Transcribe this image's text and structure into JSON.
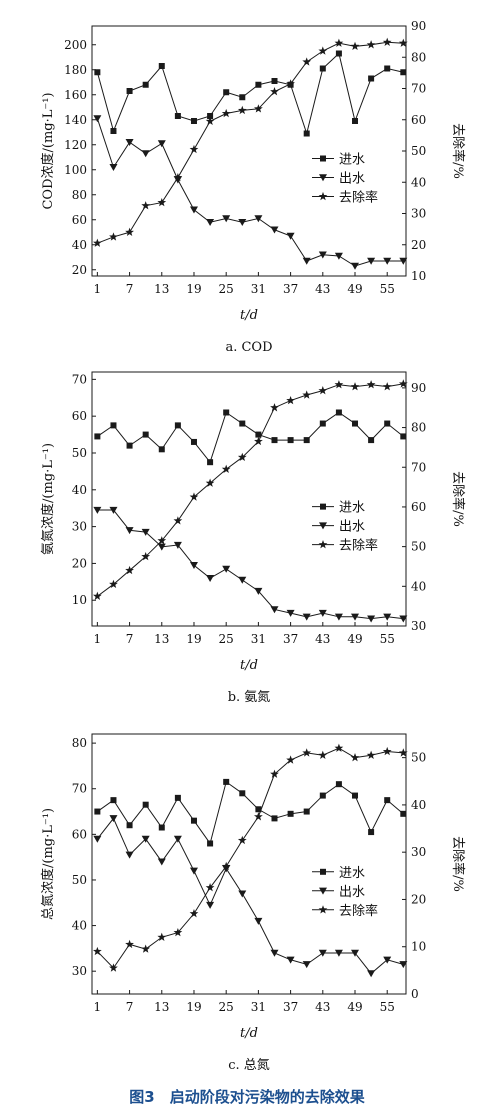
{
  "figure_caption": "图3　启动阶段对污染物的去除效果",
  "colors": {
    "line": "#1a1a1a",
    "caption": "#1c4f8f"
  },
  "chart_data": [
    {
      "type": "line",
      "subtitle": "a. COD",
      "xlabel": "t/d",
      "ylabel": "COD浓度/(mg·L⁻¹)",
      "y2label": "去除率/%",
      "xlim": [
        0,
        58.5
      ],
      "ylim": [
        15,
        215
      ],
      "y2lim": [
        10,
        90
      ],
      "xticks": [
        1,
        7,
        13,
        19,
        25,
        31,
        37,
        43,
        49,
        55
      ],
      "yticks": [
        20,
        40,
        60,
        80,
        100,
        120,
        140,
        160,
        180,
        200
      ],
      "y2ticks": [
        10,
        20,
        30,
        40,
        50,
        60,
        70,
        80,
        90
      ],
      "legend": {
        "position": "center-right",
        "entries": [
          "进水",
          "出水",
          "去除率"
        ]
      },
      "grid": false,
      "x": [
        1,
        4,
        7,
        10,
        13,
        16,
        19,
        22,
        25,
        28,
        31,
        34,
        37,
        40,
        43,
        46,
        49,
        52,
        55,
        58
      ],
      "series": [
        {
          "name": "进水",
          "axis": "left",
          "marker": "square",
          "values": [
            178,
            131,
            163,
            168,
            183,
            143,
            139,
            143,
            162,
            158,
            168,
            171,
            168,
            129,
            181,
            193,
            139,
            173,
            181,
            178
          ]
        },
        {
          "name": "出水",
          "axis": "left",
          "marker": "triangle-down",
          "values": [
            141,
            102,
            122,
            113,
            121,
            92,
            68,
            58,
            61,
            58,
            61,
            52,
            47,
            27,
            32,
            31,
            23,
            27,
            27,
            27
          ]
        },
        {
          "name": "去除率",
          "axis": "right",
          "marker": "star",
          "values": [
            20.5,
            22.5,
            24,
            32.5,
            33.5,
            41.5,
            50.5,
            59.5,
            62,
            63,
            63.5,
            69,
            71.5,
            78.5,
            82,
            84.5,
            83.5,
            84,
            84.8,
            84.5
          ]
        }
      ]
    },
    {
      "type": "line",
      "subtitle": "b. 氨氮",
      "xlabel": "t/d",
      "ylabel": "氨氮浓度/(mg·L⁻¹)",
      "y2label": "去除率/%",
      "xlim": [
        0,
        58.5
      ],
      "ylim": [
        3,
        72
      ],
      "y2lim": [
        30,
        94
      ],
      "xticks": [
        1,
        7,
        13,
        19,
        25,
        31,
        37,
        43,
        49,
        55
      ],
      "yticks": [
        10,
        20,
        30,
        40,
        50,
        60,
        70
      ],
      "y2ticks": [
        30,
        40,
        50,
        60,
        70,
        80,
        90
      ],
      "legend": {
        "position": "center-right",
        "entries": [
          "进水",
          "出水",
          "去除率"
        ]
      },
      "grid": false,
      "x": [
        1,
        4,
        7,
        10,
        13,
        16,
        19,
        22,
        25,
        28,
        31,
        34,
        37,
        40,
        43,
        46,
        49,
        52,
        55,
        58
      ],
      "series": [
        {
          "name": "进水",
          "axis": "left",
          "marker": "square",
          "values": [
            54.5,
            57.5,
            52,
            55,
            51,
            57.5,
            53,
            47.5,
            61,
            58,
            55,
            53.5,
            53.5,
            53.5,
            58,
            61,
            58,
            53.5,
            58,
            54.5
          ]
        },
        {
          "name": "出水",
          "axis": "left",
          "marker": "triangle-down",
          "values": [
            34.5,
            34.5,
            29,
            28.5,
            24.5,
            25,
            19.5,
            16,
            18.5,
            15.5,
            12.5,
            7.5,
            6.5,
            5.5,
            6.5,
            5.5,
            5.5,
            5,
            5.5,
            5
          ]
        },
        {
          "name": "去除率",
          "axis": "right",
          "marker": "star",
          "values": [
            37.5,
            40.5,
            44,
            47.5,
            51.5,
            56.5,
            62.5,
            66,
            69.5,
            72.5,
            76.5,
            85,
            86.8,
            88.2,
            89.3,
            90.8,
            90.3,
            90.8,
            90.3,
            91
          ]
        }
      ]
    },
    {
      "type": "line",
      "subtitle": "c. 总氮",
      "xlabel": "t/d",
      "ylabel": "总氮浓度/(mg·L⁻¹)",
      "y2label": "去除率/%",
      "xlim": [
        0,
        58.5
      ],
      "ylim": [
        25,
        82
      ],
      "y2lim": [
        0,
        55
      ],
      "xticks": [
        1,
        7,
        13,
        19,
        25,
        31,
        37,
        43,
        49,
        55
      ],
      "yticks": [
        30,
        40,
        50,
        60,
        70,
        80
      ],
      "y2ticks": [
        0,
        10,
        20,
        30,
        40,
        50
      ],
      "legend": {
        "position": "center-right",
        "entries": [
          "进水",
          "出水",
          "去除率"
        ]
      },
      "grid": false,
      "x": [
        1,
        4,
        7,
        10,
        13,
        16,
        19,
        22,
        25,
        28,
        31,
        34,
        37,
        40,
        43,
        46,
        49,
        52,
        55,
        58
      ],
      "series": [
        {
          "name": "进水",
          "axis": "left",
          "marker": "square",
          "values": [
            65,
            67.5,
            62,
            66.5,
            61.5,
            68,
            63,
            58,
            71.5,
            69,
            65.5,
            63.5,
            64.5,
            65,
            68.5,
            71,
            68.5,
            60.5,
            67.5,
            64.5
          ]
        },
        {
          "name": "出水",
          "axis": "left",
          "marker": "triangle-down",
          "values": [
            59,
            63.5,
            55.5,
            59,
            54,
            59,
            52,
            44.5,
            52.5,
            47,
            41,
            34,
            32.5,
            31.5,
            34,
            34,
            34,
            29.5,
            32.5,
            31.5
          ]
        },
        {
          "name": "去除率",
          "axis": "right",
          "marker": "star",
          "values": [
            9,
            5.5,
            10.5,
            9.5,
            12,
            13,
            17,
            22.5,
            27,
            32.5,
            37.5,
            46.5,
            49.5,
            51,
            50.5,
            52,
            50,
            50.5,
            51.3,
            51
          ]
        }
      ]
    }
  ]
}
